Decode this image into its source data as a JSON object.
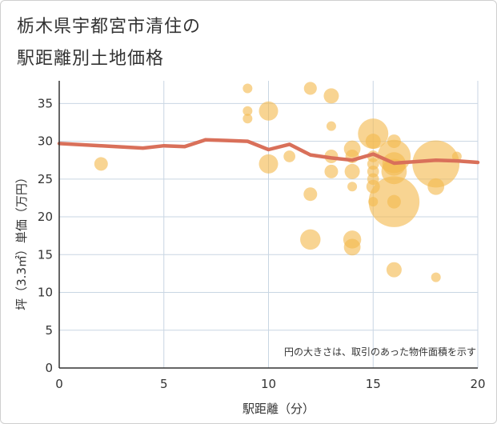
{
  "page": {
    "title_line1": "栃木県宇都宮市清住の",
    "title_line2": "駅距離別土地価格"
  },
  "chart_data": {
    "type": "scatter",
    "title": "栃木県宇都宮市清住の駅距離別土地価格",
    "xlabel": "駅距離（分）",
    "ylabel": "坪（3.3㎡）単価（万円）",
    "xlim": [
      0,
      20
    ],
    "ylim": [
      0,
      38
    ],
    "xticks": [
      0,
      5,
      10,
      15,
      20
    ],
    "yticks": [
      0,
      5,
      10,
      15,
      20,
      25,
      30,
      35
    ],
    "grid": true,
    "annotation": "円の大きさは、取引のあった物件面積を示す",
    "colors": {
      "bubble": "#f3b94f",
      "line": "#d9705a",
      "grid": "#c9d6e3",
      "axis": "#333333"
    },
    "points": [
      {
        "x": 2,
        "y": 27,
        "s": 2
      },
      {
        "x": 9,
        "y": 37,
        "s": 1
      },
      {
        "x": 9,
        "y": 34,
        "s": 1
      },
      {
        "x": 9,
        "y": 33,
        "s": 1
      },
      {
        "x": 10,
        "y": 34,
        "s": 4
      },
      {
        "x": 10,
        "y": 27,
        "s": 4
      },
      {
        "x": 11,
        "y": 28,
        "s": 1.5
      },
      {
        "x": 12,
        "y": 37,
        "s": 1.8
      },
      {
        "x": 12,
        "y": 23,
        "s": 2
      },
      {
        "x": 12,
        "y": 17,
        "s": 4.5
      },
      {
        "x": 13,
        "y": 36,
        "s": 2.5
      },
      {
        "x": 13,
        "y": 32,
        "s": 1
      },
      {
        "x": 13,
        "y": 28,
        "s": 2
      },
      {
        "x": 13,
        "y": 26,
        "s": 2
      },
      {
        "x": 14,
        "y": 29,
        "s": 3
      },
      {
        "x": 14,
        "y": 28,
        "s": 2
      },
      {
        "x": 14,
        "y": 26,
        "s": 2.5
      },
      {
        "x": 14,
        "y": 24,
        "s": 1
      },
      {
        "x": 14,
        "y": 17,
        "s": 3.5
      },
      {
        "x": 14,
        "y": 16,
        "s": 3
      },
      {
        "x": 15,
        "y": 31,
        "s": 10
      },
      {
        "x": 15,
        "y": 30,
        "s": 2.5
      },
      {
        "x": 15,
        "y": 28,
        "s": 1.5
      },
      {
        "x": 15,
        "y": 27,
        "s": 1.5
      },
      {
        "x": 15,
        "y": 26,
        "s": 1.5
      },
      {
        "x": 15,
        "y": 25,
        "s": 1.5
      },
      {
        "x": 15,
        "y": 24,
        "s": 2
      },
      {
        "x": 15,
        "y": 22,
        "s": 1
      },
      {
        "x": 16,
        "y": 30,
        "s": 2
      },
      {
        "x": 16,
        "y": 28,
        "s": 12
      },
      {
        "x": 16,
        "y": 27,
        "s": 6
      },
      {
        "x": 16,
        "y": 26,
        "s": 7
      },
      {
        "x": 16,
        "y": 22,
        "s": 28
      },
      {
        "x": 16,
        "y": 22,
        "s": 2
      },
      {
        "x": 16,
        "y": 13,
        "s": 2.5
      },
      {
        "x": 18,
        "y": 27,
        "s": 24
      },
      {
        "x": 18,
        "y": 24,
        "s": 3
      },
      {
        "x": 18,
        "y": 12,
        "s": 1
      },
      {
        "x": 19,
        "y": 28,
        "s": 1
      }
    ],
    "trend_line": {
      "x": [
        0,
        2,
        4,
        5,
        6,
        7,
        8,
        9,
        10,
        11,
        12,
        13,
        14,
        15,
        16,
        17,
        18,
        19,
        20
      ],
      "y": [
        29.7,
        29.4,
        29.1,
        29.4,
        29.3,
        30.2,
        30.1,
        30.0,
        28.9,
        29.6,
        28.2,
        27.8,
        27.5,
        28.3,
        27.1,
        27.3,
        27.5,
        27.4,
        27.2
      ]
    }
  }
}
